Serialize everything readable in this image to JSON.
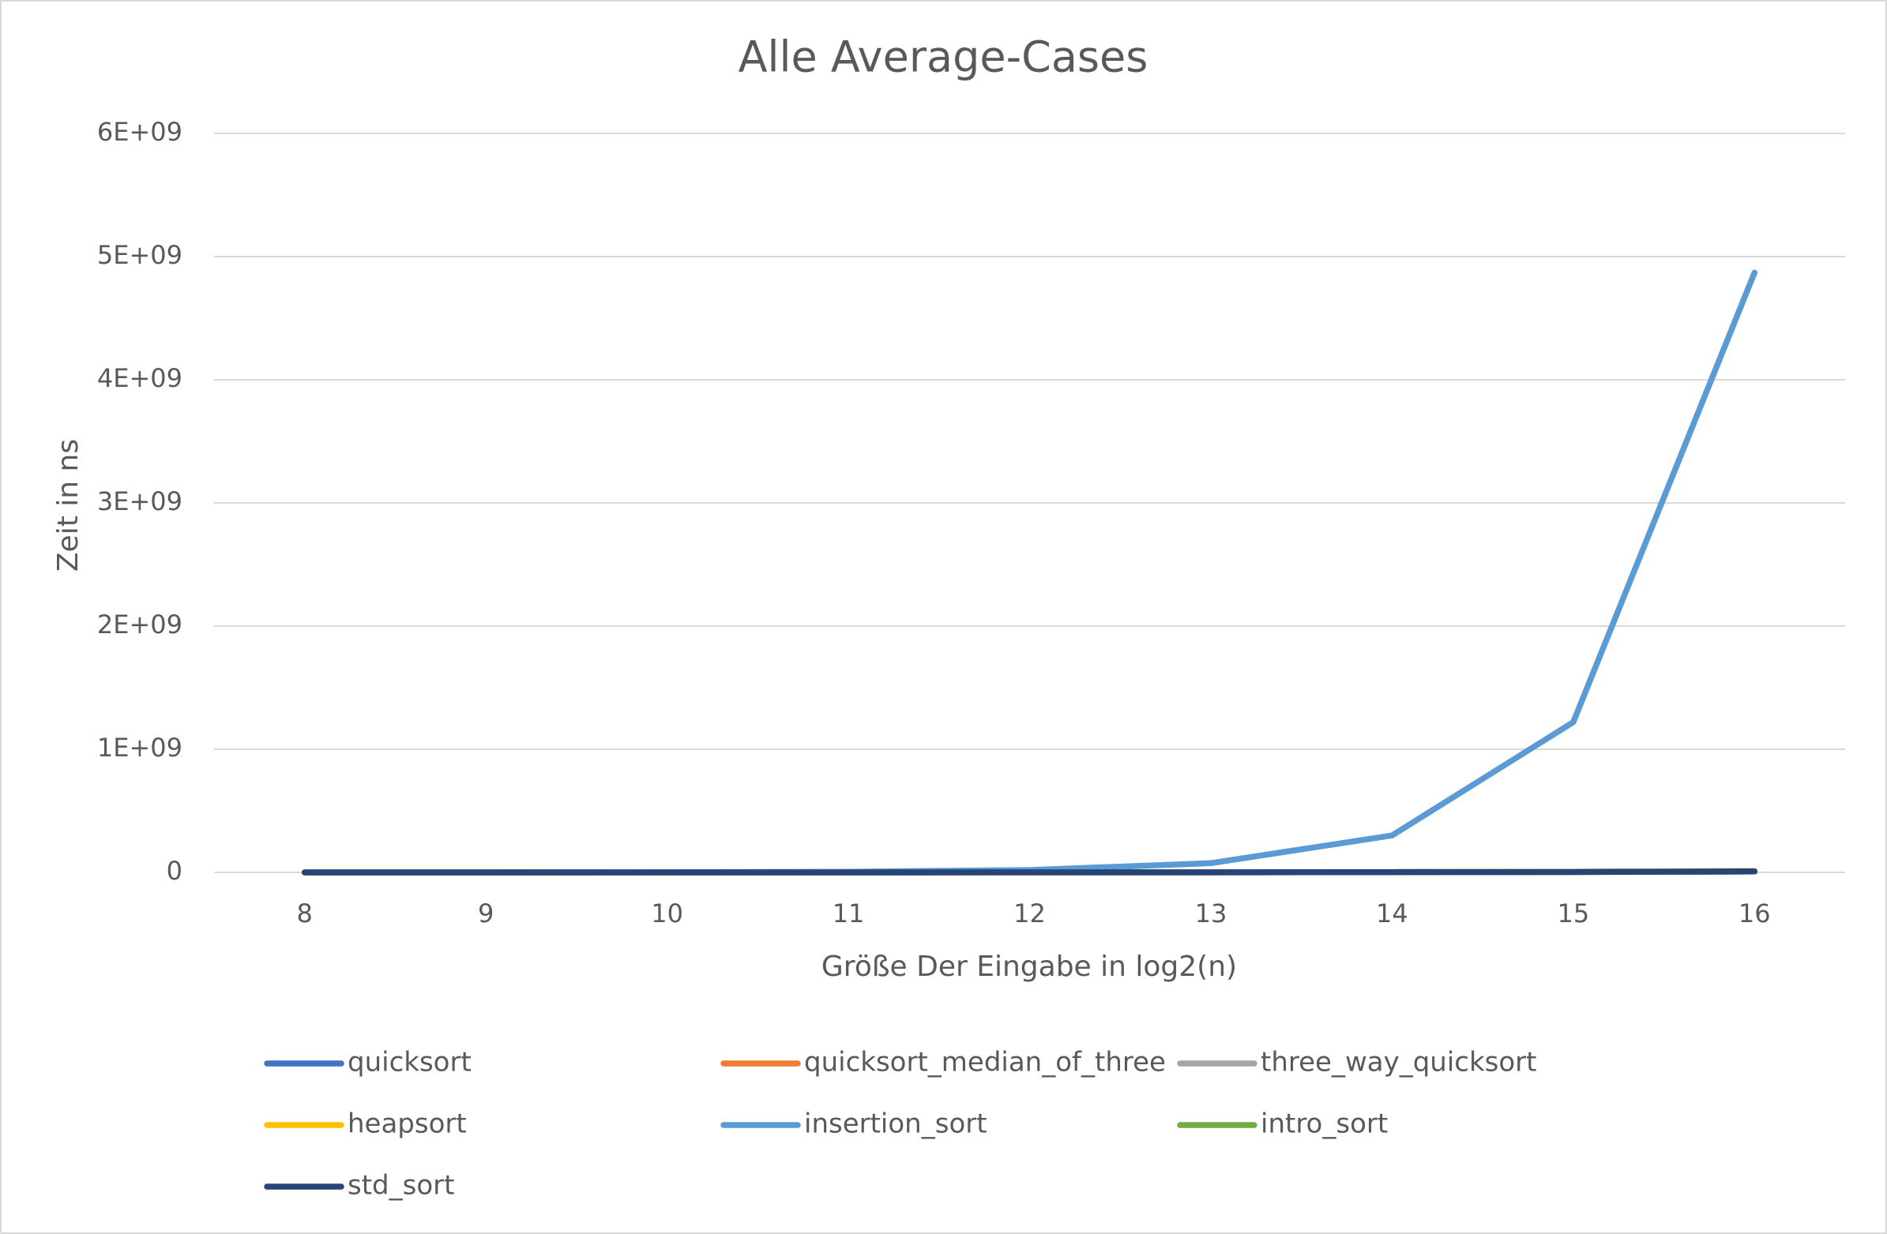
{
  "chart_data": {
    "type": "line",
    "title": "Alle Average-Cases",
    "x_label": "Größe Der Eingabe in log2(n)",
    "y_label": "Zeit in ns",
    "categories": [
      "8",
      "9",
      "10",
      "11",
      "12",
      "13",
      "14",
      "15",
      "16"
    ],
    "ylim": [
      0,
      6000000000
    ],
    "yticks": [
      0,
      {
        "value": 1000000000,
        "label": "1E+09"
      },
      {
        "value": 2000000000,
        "label": "2E+09"
      },
      {
        "value": 3000000000,
        "label": "3E+09"
      },
      {
        "value": 4000000000,
        "label": "4E+09"
      },
      {
        "value": 5000000000,
        "label": "5E+09"
      },
      {
        "value": 6000000000,
        "label": "6E+09"
      }
    ],
    "grid": true,
    "series": [
      {
        "name": "quicksort",
        "color": "#4472c4",
        "values": [
          20000,
          40000,
          90000,
          200000,
          420000,
          900000,
          1900000,
          4000000,
          8500000
        ]
      },
      {
        "name": "quicksort_median_of_three",
        "color": "#ed7d31",
        "values": [
          18000,
          38000,
          85000,
          190000,
          400000,
          850000,
          1800000,
          3800000,
          8000000
        ]
      },
      {
        "name": "three_way_quicksort",
        "color": "#a5a5a5",
        "values": [
          25000,
          55000,
          120000,
          260000,
          550000,
          1200000,
          2500000,
          5300000,
          11000000
        ]
      },
      {
        "name": "heapsort",
        "color": "#ffc000",
        "values": [
          22000,
          48000,
          105000,
          230000,
          500000,
          1100000,
          2300000,
          5000000,
          10500000
        ]
      },
      {
        "name": "insertion_sort",
        "color": "#5b9bd5",
        "values": [
          80000,
          300000,
          1200000,
          5000000,
          19000000,
          75000000,
          300000000,
          1220000000,
          4870000000
        ]
      },
      {
        "name": "intro_sort",
        "color": "#70ad47",
        "values": [
          17000,
          37000,
          82000,
          180000,
          390000,
          830000,
          1750000,
          3700000,
          7800000
        ]
      },
      {
        "name": "std_sort",
        "color": "#264478",
        "values": [
          15000,
          33000,
          75000,
          165000,
          360000,
          780000,
          1650000,
          3500000,
          7400000
        ]
      }
    ]
  }
}
